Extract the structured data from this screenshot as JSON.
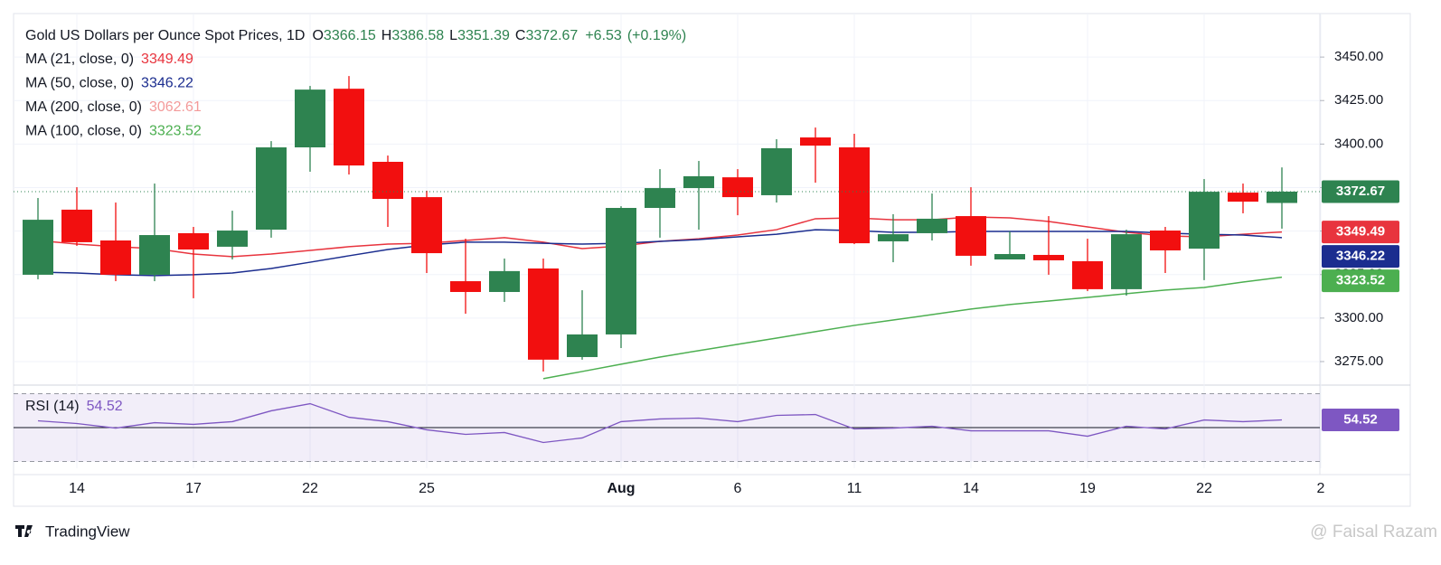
{
  "chart_data": {
    "type": "candlestick",
    "title": "Gold US Dollars per Ounce Spot Prices, 1D",
    "ohlc_letters": [
      "O",
      "H",
      "L",
      "C"
    ],
    "change": "+6.53",
    "change_pct": "(+0.19%)",
    "categories": [
      null,
      "14",
      null,
      null,
      "17",
      null,
      null,
      "22",
      null,
      null,
      "25",
      null,
      null,
      null,
      null,
      "Aug",
      null,
      null,
      "6",
      null,
      null,
      "11",
      null,
      null,
      "14",
      null,
      null,
      "19",
      null,
      null,
      "22",
      null,
      null,
      "2"
    ],
    "open": [
      3324.9,
      3362.3,
      3344.6,
      3324.9,
      3348.8,
      3341,
      3350.8,
      3398.1,
      3431.8,
      3389.8,
      3369.5,
      3321.2,
      3315,
      3328.5,
      3277.6,
      3290.6,
      3363.3,
      3374.7,
      3380.9,
      3370.6,
      3403.8,
      3398.1,
      3344.1,
      3348.8,
      3358.6,
      3333.7,
      3336.3,
      3332.7,
      3316.6,
      3350.3,
      3339.9,
      3372.1,
      3366.15,
      null
    ],
    "high": [
      3369,
      3375.2,
      3366.4,
      3377.3,
      3352.4,
      3361.7,
      3401.7,
      3433.4,
      3439.1,
      3393.4,
      3373.2,
      3345.6,
      3334.2,
      3334.2,
      3316,
      3364.3,
      3385.6,
      3390.3,
      3385.6,
      3402.8,
      3409.5,
      3405.9,
      3359.7,
      3371.6,
      3375.2,
      3349.8,
      3358.6,
      3345.6,
      3350.8,
      3352.4,
      3379.9,
      3377.3,
      3386.58,
      null
    ],
    "low": [
      3322.3,
      3341.5,
      3321.2,
      3321.2,
      3311.4,
      3333.7,
      3346.2,
      3384.1,
      3382.5,
      3352.4,
      3325.9,
      3302.5,
      3309.3,
      3269.3,
      3276.1,
      3282.8,
      3346.2,
      3350.8,
      3359.1,
      3366.4,
      3377.8,
      3342.5,
      3332.1,
      3344.6,
      3330.1,
      3333.7,
      3324.9,
      3315.5,
      3312.9,
      3325.9,
      3321.8,
      3360.2,
      3351.39,
      null
    ],
    "close": [
      3356.5,
      3343.6,
      3324.9,
      3347.7,
      3339.4,
      3350.3,
      3398.1,
      3431.3,
      3387.7,
      3368.5,
      3337.3,
      3315,
      3327,
      3276.1,
      3290.6,
      3363.3,
      3374.7,
      3381.5,
      3369.5,
      3397.6,
      3399.1,
      3343,
      3348.2,
      3357.1,
      3335.8,
      3336.8,
      3333.2,
      3316.6,
      3348.2,
      3338.9,
      3372.6,
      3366.9,
      3372.67,
      null
    ],
    "up_color": "#2e8350",
    "down_color": "#f20f0f",
    "ylim": [
      3262,
      3475
    ],
    "yticks": [
      {
        "value": 3275,
        "label": "3275.00"
      },
      {
        "value": 3300,
        "label": "3300.00"
      },
      {
        "value": 3325,
        "label": "3325.00"
      },
      {
        "value": 3350,
        "label": "3350.00"
      },
      {
        "value": 3375,
        "label": "3375.00"
      },
      {
        "value": 3400,
        "label": "3400.00"
      },
      {
        "value": 3425,
        "label": "3425.00"
      },
      {
        "value": 3450,
        "label": "3450.00"
      }
    ],
    "grid": true,
    "overlays": [
      {
        "name": "MA (21, close, 0)",
        "color": "#e8343e",
        "values": [
          3344.6,
          3342.5,
          3341.0,
          3339.9,
          3336.8,
          3335.3,
          3336.8,
          3338.9,
          3341.0,
          3342.5,
          3343.0,
          3344.6,
          3346.2,
          3343.6,
          3339.9,
          3341.4,
          3344.1,
          3345.6,
          3347.7,
          3350.8,
          3357.1,
          3357.6,
          3356.5,
          3356.5,
          3358.1,
          3357.6,
          3355.5,
          3352.4,
          3349.3,
          3347.2,
          3346.7,
          3348.2,
          3349.49,
          null
        ]
      },
      {
        "name": "MA (50, close, 0)",
        "color": "#1b2d8f",
        "values": [
          3326.4,
          3325.9,
          3324.9,
          3324.4,
          3324.9,
          3325.9,
          3328.5,
          3332.1,
          3335.8,
          3339.4,
          3342.0,
          3343.6,
          3343.6,
          3343.0,
          3342.5,
          3343.0,
          3344.1,
          3345.1,
          3346.7,
          3348.2,
          3350.8,
          3350.3,
          3349.3,
          3349.3,
          3349.8,
          3349.8,
          3349.8,
          3349.8,
          3349.8,
          3348.8,
          3348.2,
          3347.7,
          3346.22,
          null
        ]
      },
      {
        "name": "MA (200, close, 0)",
        "color": "#f39a9a",
        "last": 3062.61
      },
      {
        "name": "MA (100, close, 0)",
        "color": "#4caf50",
        "values": [
          null,
          null,
          null,
          null,
          null,
          null,
          null,
          null,
          null,
          null,
          null,
          null,
          null,
          3265.2,
          3269.3,
          3273.5,
          3277.6,
          3281.3,
          3284.9,
          3288.5,
          3292.2,
          3295.8,
          3298.9,
          3302.0,
          3305.2,
          3307.8,
          3309.8,
          3311.9,
          3314.0,
          3316.1,
          3317.6,
          3320.7,
          3323.52,
          null
        ]
      }
    ],
    "rsi": {
      "name": "RSI (14)",
      "color": "#7e57c2",
      "ylim": [
        26,
        74
      ],
      "levels": [
        30,
        50,
        70
      ],
      "values": [
        54.0,
        52.4,
        49.7,
        52.9,
        51.9,
        53.5,
        59.9,
        64.1,
        56.1,
        53.5,
        48.7,
        46.0,
        47.1,
        41.2,
        43.9,
        53.5,
        55.1,
        55.6,
        53.5,
        57.2,
        57.7,
        49.2,
        49.7,
        50.8,
        48.1,
        48.1,
        48.1,
        44.9,
        50.8,
        49.2,
        54.5,
        53.5,
        54.52,
        null
      ]
    }
  },
  "footer": {
    "brand": "TradingView",
    "watermark": "@ Faisal Razam"
  }
}
